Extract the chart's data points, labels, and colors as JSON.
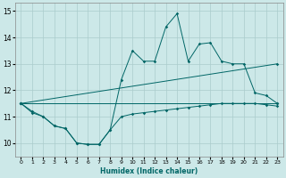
{
  "title": "",
  "xlabel": "Humidex (Indice chaleur)",
  "xlim": [
    -0.5,
    23.5
  ],
  "ylim": [
    9.5,
    15.3
  ],
  "xticks": [
    0,
    1,
    2,
    3,
    4,
    5,
    6,
    7,
    8,
    9,
    10,
    11,
    12,
    13,
    14,
    15,
    16,
    17,
    18,
    19,
    20,
    21,
    22,
    23
  ],
  "yticks": [
    10,
    11,
    12,
    13,
    14,
    15
  ],
  "background_color": "#cce8e8",
  "grid_color": "#aacccc",
  "line_color": "#006666",
  "series": {
    "main": {
      "x": [
        0,
        1,
        2,
        3,
        4,
        5,
        6,
        7,
        8,
        9,
        10,
        11,
        12,
        13,
        14,
        15,
        16,
        17,
        18,
        19,
        20,
        21,
        22,
        23
      ],
      "y": [
        11.5,
        11.2,
        11.0,
        10.65,
        10.55,
        10.0,
        9.95,
        9.95,
        10.5,
        12.4,
        13.5,
        13.1,
        13.1,
        14.4,
        14.9,
        13.1,
        13.75,
        13.8,
        13.1,
        13.0,
        13.0,
        11.9,
        11.8,
        11.5
      ]
    },
    "upper": {
      "x": [
        0,
        23
      ],
      "y": [
        11.5,
        13.0
      ]
    },
    "lower_flat": {
      "x": [
        0,
        23
      ],
      "y": [
        11.5,
        11.5
      ]
    },
    "mid_flat": {
      "x": [
        0,
        23
      ],
      "y": [
        11.5,
        11.5
      ]
    },
    "bottom_curve": {
      "x": [
        0,
        1,
        2,
        3,
        4,
        5,
        6,
        7,
        8,
        9,
        10,
        11,
        12,
        13,
        14,
        15,
        16,
        17,
        18,
        19,
        20,
        21,
        22,
        23
      ],
      "y": [
        11.5,
        11.15,
        11.0,
        10.65,
        10.55,
        10.0,
        9.95,
        9.95,
        10.5,
        11.0,
        11.1,
        11.15,
        11.2,
        11.25,
        11.3,
        11.35,
        11.4,
        11.45,
        11.5,
        11.5,
        11.5,
        11.5,
        11.45,
        11.4
      ]
    }
  }
}
